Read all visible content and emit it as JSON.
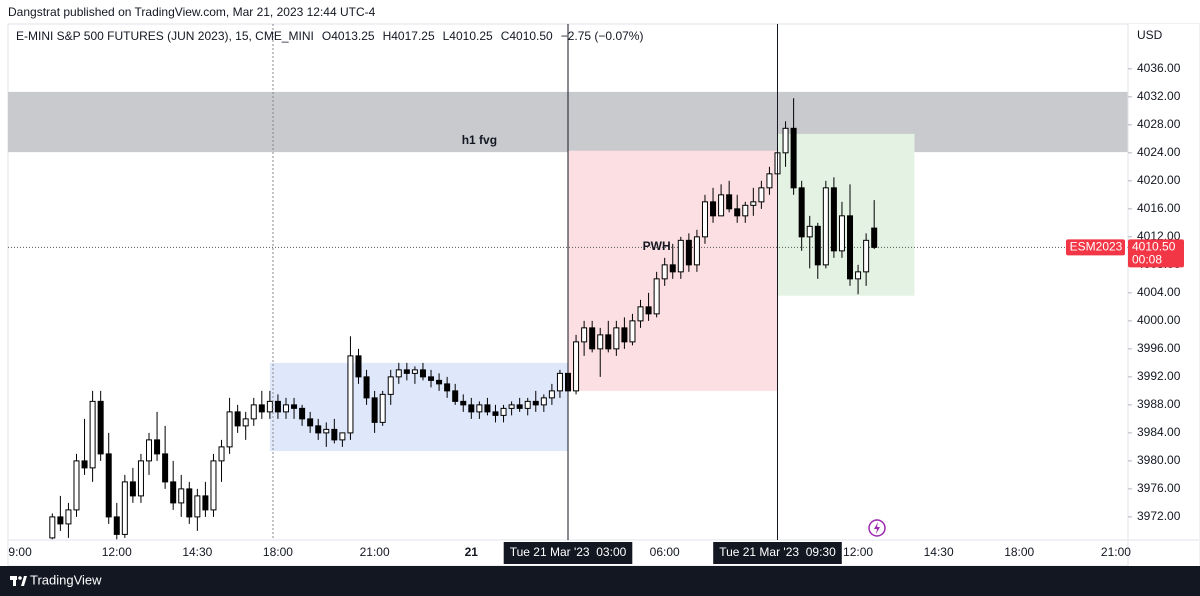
{
  "header": {
    "publisher": "Dangstrat published on TradingView.com, Mar 21, 2023 12:44 UTC-4"
  },
  "footer": {
    "brand": "TradingView"
  },
  "chart_data": {
    "type": "candlestick",
    "symbol": "E-MINI S&P 500 FUTURES (JUN 2023), 15, CME_MINI",
    "legend_values": [
      "O4013.25",
      "H4017.25",
      "L4010.25",
      "C4010.50",
      "−2.75 (−0.07%)"
    ],
    "currency": "USD",
    "up_color": "#ffffff",
    "down_color": "#000000",
    "border_color": "#000000",
    "grid": false,
    "ylim": [
      3968.7,
      4042.4
    ],
    "yticks": [
      {
        "value": 3972,
        "label": "3972.00"
      },
      {
        "value": 3976,
        "label": "3976.00"
      },
      {
        "value": 3980,
        "label": "3980.00"
      },
      {
        "value": 3984,
        "label": "3984.00"
      },
      {
        "value": 3988,
        "label": "3988.00"
      },
      {
        "value": 3992,
        "label": "3992.00"
      },
      {
        "value": 3996,
        "label": "3996.00"
      },
      {
        "value": 4000,
        "label": "4000.00"
      },
      {
        "value": 4004,
        "label": "4004.00"
      },
      {
        "value": 4008,
        "label": "4008.00"
      },
      {
        "value": 4012,
        "label": "4012.00"
      },
      {
        "value": 4016,
        "label": "4016.00"
      },
      {
        "value": 4020,
        "label": "4020.00"
      },
      {
        "value": 4024,
        "label": "4024.00"
      },
      {
        "value": 4028,
        "label": "4028.00"
      },
      {
        "value": 4032,
        "label": "4032.00"
      },
      {
        "value": 4036,
        "label": "4036.00"
      }
    ],
    "categories": [
      null,
      "9:00",
      null,
      null,
      null,
      null,
      null,
      null,
      null,
      null,
      null,
      null,
      null,
      "12:00",
      null,
      null,
      null,
      null,
      null,
      null,
      null,
      null,
      null,
      "14:30",
      null,
      null,
      null,
      null,
      null,
      null,
      null,
      null,
      null,
      "18:00",
      null,
      null,
      null,
      null,
      null,
      null,
      null,
      null,
      null,
      null,
      null,
      "21:00",
      null,
      null,
      null,
      null,
      null,
      null,
      null,
      null,
      null,
      null,
      null,
      "21",
      null,
      null,
      null,
      null,
      null,
      null,
      null,
      null,
      null,
      null,
      null,
      null,
      null,
      null,
      null,
      null,
      null,
      null,
      null,
      null,
      null,
      null,
      null,
      "06:00",
      null,
      null,
      null,
      null,
      null,
      null,
      null,
      null,
      null,
      null,
      null,
      null,
      null,
      null,
      null,
      null,
      null,
      null,
      null,
      null,
      null,
      null,
      null,
      "12:00",
      null,
      null,
      null,
      null,
      null,
      null,
      null,
      null,
      null,
      "14:30",
      null,
      null,
      null,
      null,
      null,
      null,
      null,
      null,
      null,
      "18:00",
      null,
      null,
      null,
      null,
      null,
      null,
      null,
      null,
      null,
      null,
      null,
      "21:00",
      null
    ],
    "ohlc": [
      null,
      null,
      null,
      null,
      null,
      [
        3969,
        3972.5,
        3968.8,
        3972
      ],
      [
        3972,
        3975,
        3970,
        3971
      ],
      [
        3971,
        3974,
        3969,
        3973
      ],
      [
        3973,
        3981,
        3972,
        3980
      ],
      [
        3980,
        3986,
        3978,
        3979
      ],
      [
        3979,
        3990,
        3977,
        3988.5
      ],
      [
        3988.5,
        3990,
        3980,
        3981
      ],
      [
        3981,
        3984,
        3971,
        3972
      ],
      [
        3972,
        3974,
        3968.8,
        3969.5
      ],
      [
        3969.5,
        3978,
        3969,
        3977
      ],
      [
        3977,
        3979,
        3974,
        3975
      ],
      [
        3975,
        3981,
        3974,
        3980
      ],
      [
        3980,
        3984,
        3978,
        3983
      ],
      [
        3983,
        3987,
        3980,
        3981
      ],
      [
        3981,
        3985,
        3976,
        3977
      ],
      [
        3977,
        3980,
        3973,
        3974
      ],
      [
        3974,
        3978,
        3972,
        3976
      ],
      [
        3976,
        3977,
        3971,
        3972
      ],
      [
        3972,
        3976,
        3970,
        3975
      ],
      [
        3975,
        3977,
        3972,
        3973
      ],
      [
        3973,
        3981,
        3972,
        3980
      ],
      [
        3980,
        3983,
        3977,
        3982
      ],
      [
        3982,
        3989,
        3981,
        3987
      ],
      [
        3987,
        3988,
        3984,
        3985
      ],
      [
        3985,
        3987,
        3983,
        3986
      ],
      [
        3986,
        3989,
        3985,
        3988
      ],
      [
        3988,
        3990,
        3986,
        3987
      ],
      [
        3987,
        3990,
        3986,
        3988.5
      ],
      [
        3988.5,
        3989.5,
        3986,
        3987
      ],
      [
        3987,
        3989,
        3986,
        3988
      ],
      [
        3988,
        3989,
        3986,
        3987.5
      ],
      [
        3987.5,
        3988,
        3985,
        3986
      ],
      [
        3986,
        3987,
        3984,
        3985
      ],
      [
        3985,
        3986,
        3983,
        3984
      ],
      [
        3984,
        3985.5,
        3982,
        3984.5
      ],
      [
        3984.5,
        3986,
        3982.5,
        3983
      ],
      [
        3983,
        3984,
        3982,
        3984
      ],
      [
        3984,
        3997.8,
        3983,
        3995
      ],
      [
        3995,
        3996,
        3991,
        3992
      ],
      [
        3992,
        3993,
        3988,
        3989
      ],
      [
        3989,
        3990,
        3984,
        3985.5
      ],
      [
        3985.5,
        3990,
        3985,
        3989.5
      ],
      [
        3989.5,
        3993,
        3988,
        3992
      ],
      [
        3992,
        3994,
        3991,
        3993
      ],
      [
        3993,
        3994,
        3991.5,
        3992.5
      ],
      [
        3992.5,
        3993.5,
        3991,
        3993
      ],
      [
        3993,
        3994,
        3991.5,
        3992
      ],
      [
        3992,
        3993,
        3990.5,
        3991.5
      ],
      [
        3991.5,
        3992.5,
        3990,
        3991
      ],
      [
        3991,
        3992,
        3989,
        3990
      ],
      [
        3990,
        3991,
        3988,
        3988.5
      ],
      [
        3988.5,
        3989.5,
        3987,
        3988
      ],
      [
        3988,
        3989,
        3986,
        3987
      ],
      [
        3987,
        3988.5,
        3986,
        3988
      ],
      [
        3988,
        3989,
        3986.5,
        3987
      ],
      [
        3987,
        3988,
        3985.5,
        3986.5
      ],
      [
        3986.5,
        3988,
        3985.5,
        3987.5
      ],
      [
        3987.5,
        3988.5,
        3986.5,
        3988
      ],
      [
        3988,
        3989,
        3987,
        3987.5
      ],
      [
        3987.5,
        3989,
        3986.5,
        3988.5
      ],
      [
        3988.5,
        3990,
        3987,
        3988
      ],
      [
        3988,
        3989.5,
        3987,
        3989
      ],
      [
        3989,
        3991,
        3988,
        3990
      ],
      [
        3990,
        3993,
        3989,
        3992.5
      ],
      [
        3992.5,
        3993.5,
        3989,
        3990
      ],
      [
        3990,
        3998,
        3989.5,
        3997
      ],
      [
        3997,
        4000,
        3995,
        3999
      ],
      [
        3999,
        4000,
        3995.5,
        3996
      ],
      [
        3996,
        3999,
        3992,
        3998
      ],
      [
        3998,
        4000,
        3995.5,
        3996
      ],
      [
        3996,
        4000,
        3995,
        3999
      ],
      [
        3999,
        4000.5,
        3996,
        3997
      ],
      [
        3997,
        4001,
        3996.5,
        4000
      ],
      [
        4000,
        4003,
        3999,
        4002
      ],
      [
        4002,
        4004,
        4000,
        4001
      ],
      [
        4001,
        4007,
        4000.5,
        4006
      ],
      [
        4006,
        4009,
        4005,
        4008
      ],
      [
        4008,
        4011,
        4006,
        4007
      ],
      [
        4007,
        4012,
        4006,
        4011.5
      ],
      [
        4011.5,
        4012.5,
        4007,
        4008
      ],
      [
        4008,
        4013,
        4007,
        4012
      ],
      [
        4012,
        4018,
        4011,
        4017
      ],
      [
        4017,
        4019,
        4014,
        4015
      ],
      [
        4015,
        4019.5,
        4015,
        4018
      ],
      [
        4018,
        4020,
        4015.5,
        4016
      ],
      [
        4016,
        4018,
        4014,
        4015
      ],
      [
        4015,
        4017,
        4014,
        4016.5
      ],
      [
        4016.5,
        4019,
        4015,
        4017
      ],
      [
        4017,
        4020,
        4016,
        4019
      ],
      [
        4019,
        4022,
        4018,
        4021
      ],
      [
        4021,
        4025,
        4019.5,
        4024
      ],
      [
        4024,
        4028.5,
        4022,
        4027.5
      ],
      [
        4027.5,
        4031.8,
        4018,
        4019
      ],
      [
        4019,
        4020,
        4010,
        4012
      ],
      [
        4012,
        4015,
        4007.5,
        4013.5
      ],
      [
        4013.5,
        4014,
        4006,
        4008
      ],
      [
        4008,
        4020,
        4007.5,
        4019
      ],
      [
        4019,
        4020.5,
        4009,
        4010
      ],
      [
        4010,
        4017,
        4009,
        4015
      ],
      [
        4015,
        4019.5,
        4005,
        4006
      ],
      [
        4006,
        4008,
        4003.8,
        4007
      ],
      [
        4007,
        4012.5,
        4005,
        4011.5
      ],
      [
        4013.25,
        4017.25,
        4010.25,
        4010.5
      ],
      null,
      null,
      null,
      null,
      null,
      null,
      null,
      null,
      null,
      null,
      null,
      null,
      null,
      null,
      null,
      null,
      null,
      null,
      null,
      null,
      null,
      null,
      null,
      null,
      null,
      null,
      null,
      null,
      null,
      null,
      null
    ],
    "zones": [
      {
        "top": 4032.7,
        "bottom": 4024.1,
        "color": "#c9cacd"
      },
      {
        "top": 3994,
        "bottom": 3981.4,
        "x0": 32,
        "x1": 69,
        "color": "#dfe7fb"
      },
      {
        "top": 4024.3,
        "bottom": 3990,
        "x0": 69,
        "x1": 95,
        "color": "#fbdfe2"
      },
      {
        "top": 4026.7,
        "bottom": 4003.6,
        "x0": 95,
        "x1": 112,
        "color": "#e3f2e3"
      }
    ],
    "annotations": [
      {
        "text": "h1 fvg",
        "x": 58,
        "y": 4025.7
      },
      {
        "text": "PWH",
        "x": 80,
        "y": 4010.6
      }
    ],
    "markers": [
      {
        "x": 69,
        "label": "Tue 21 Mar '23  03:00"
      },
      {
        "x": 95,
        "label": "Tue 21 Mar '23  09:30"
      }
    ],
    "last_price": {
      "value": 4010.5,
      "label": "4010.50",
      "symbol": "ESM2023",
      "countdown": "00:08",
      "color": "#f23645"
    }
  }
}
